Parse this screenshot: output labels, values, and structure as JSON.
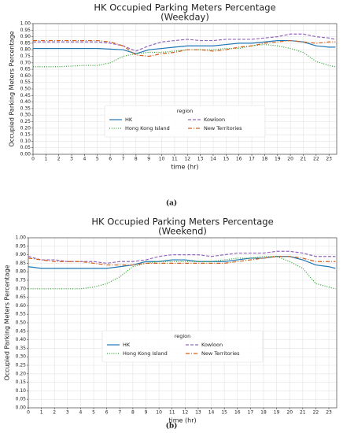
{
  "chart_data": [
    {
      "type": "line",
      "title": "HK Occupied Parking Meters Percentage",
      "subtitle": "(Weekday)",
      "caption": "(a)",
      "xlabel": "time (hr)",
      "ylabel": "Occupied Parking Meters Percentage",
      "legend_title": "region",
      "legend": "center",
      "grid": true,
      "x": [
        0,
        1,
        2,
        3,
        4,
        5,
        6,
        7,
        8,
        9,
        10,
        11,
        12,
        13,
        14,
        15,
        16,
        17,
        18,
        19,
        20,
        21,
        22,
        23,
        23.5
      ],
      "xlim": [
        0,
        23.6
      ],
      "xticks": [
        0,
        1,
        2,
        3,
        4,
        5,
        6,
        7,
        8,
        9,
        10,
        11,
        12,
        13,
        14,
        15,
        16,
        17,
        18,
        19,
        20,
        21,
        22,
        23
      ],
      "ylim": [
        0,
        1
      ],
      "yticks": [
        {
          "value": 0,
          "label": "0.00"
        },
        {
          "value": 0.05,
          "label": "0.05"
        },
        {
          "value": 0.1,
          "label": "0.10"
        },
        {
          "value": 0.15,
          "label": "0.15"
        },
        {
          "value": 0.2,
          "label": "0.20"
        },
        {
          "value": 0.25,
          "label": "0.25"
        },
        {
          "value": 0.3,
          "label": "0.30"
        },
        {
          "value": 0.35,
          "label": "0.35"
        },
        {
          "value": 0.4,
          "label": "0.40"
        },
        {
          "value": 0.45,
          "label": "0.45"
        },
        {
          "value": 0.5,
          "label": "0.50"
        },
        {
          "value": 0.55,
          "label": "0.55"
        },
        {
          "value": 0.6,
          "label": "0.60"
        },
        {
          "value": 0.65,
          "label": "0.65"
        },
        {
          "value": 0.7,
          "label": "0.70"
        },
        {
          "value": 0.75,
          "label": "0.75"
        },
        {
          "value": 0.8,
          "label": "0.80"
        },
        {
          "value": 0.85,
          "label": "0.85"
        },
        {
          "value": 0.9,
          "label": "0.90"
        },
        {
          "value": 0.95,
          "label": "0.95"
        },
        {
          "value": 1,
          "label": "1.00"
        }
      ],
      "series": [
        {
          "name": "HK",
          "color": "#1f77b4",
          "dash": "solid",
          "values": [
            0.81,
            0.81,
            0.81,
            0.81,
            0.81,
            0.81,
            0.805,
            0.8,
            0.77,
            0.8,
            0.81,
            0.82,
            0.83,
            0.83,
            0.83,
            0.84,
            0.85,
            0.85,
            0.86,
            0.87,
            0.87,
            0.86,
            0.83,
            0.82,
            0.82
          ]
        },
        {
          "name": "Hong Kong Island",
          "color": "#2ca02c",
          "dash": "dotted",
          "values": [
            0.67,
            0.67,
            0.67,
            0.675,
            0.68,
            0.68,
            0.7,
            0.75,
            0.77,
            0.78,
            0.78,
            0.79,
            0.8,
            0.8,
            0.8,
            0.81,
            0.81,
            0.83,
            0.84,
            0.83,
            0.81,
            0.78,
            0.71,
            0.68,
            0.67
          ]
        },
        {
          "name": "Kowloon",
          "color": "#9467bd",
          "dash": "dashed",
          "values": [
            0.86,
            0.86,
            0.86,
            0.86,
            0.86,
            0.86,
            0.85,
            0.83,
            0.79,
            0.83,
            0.86,
            0.87,
            0.88,
            0.87,
            0.87,
            0.88,
            0.88,
            0.88,
            0.89,
            0.9,
            0.92,
            0.92,
            0.9,
            0.89,
            0.88
          ]
        },
        {
          "name": "New Territories",
          "color": "#d2601a",
          "dash": "dashdot",
          "values": [
            0.87,
            0.87,
            0.87,
            0.87,
            0.87,
            0.87,
            0.86,
            0.83,
            0.76,
            0.75,
            0.77,
            0.78,
            0.8,
            0.8,
            0.79,
            0.8,
            0.82,
            0.83,
            0.85,
            0.86,
            0.87,
            0.86,
            0.85,
            0.86,
            0.86
          ]
        }
      ]
    },
    {
      "type": "line",
      "title": "HK Occupied Parking Meters Percentage",
      "subtitle": "(Weekend)",
      "caption": "(b)",
      "xlabel": "time (hr)",
      "ylabel": "Occupied Parking Meters Percentage",
      "legend_title": "region",
      "legend": "center",
      "grid": true,
      "x": [
        0,
        1,
        2,
        3,
        4,
        5,
        6,
        7,
        8,
        9,
        10,
        11,
        12,
        13,
        14,
        15,
        16,
        17,
        18,
        19,
        20,
        21,
        22,
        23,
        23.5
      ],
      "xlim": [
        0,
        23.6
      ],
      "xticks": [
        0,
        1,
        2,
        3,
        4,
        5,
        6,
        7,
        8,
        9,
        10,
        11,
        12,
        13,
        14,
        15,
        16,
        17,
        18,
        19,
        20,
        21,
        22,
        23
      ],
      "ylim": [
        0,
        1
      ],
      "yticks": [
        {
          "value": 0,
          "label": "0.00"
        },
        {
          "value": 0.05,
          "label": "0.05"
        },
        {
          "value": 0.1,
          "label": "0.10"
        },
        {
          "value": 0.15,
          "label": "0.15"
        },
        {
          "value": 0.2,
          "label": "0.20"
        },
        {
          "value": 0.25,
          "label": "0.25"
        },
        {
          "value": 0.3,
          "label": "0.30"
        },
        {
          "value": 0.35,
          "label": "0.35"
        },
        {
          "value": 0.4,
          "label": "0.40"
        },
        {
          "value": 0.45,
          "label": "0.45"
        },
        {
          "value": 0.5,
          "label": "0.50"
        },
        {
          "value": 0.55,
          "label": "0.55"
        },
        {
          "value": 0.6,
          "label": "0.60"
        },
        {
          "value": 0.65,
          "label": "0.65"
        },
        {
          "value": 0.7,
          "label": "0.70"
        },
        {
          "value": 0.75,
          "label": "0.75"
        },
        {
          "value": 0.8,
          "label": "0.80"
        },
        {
          "value": 0.85,
          "label": "0.85"
        },
        {
          "value": 0.9,
          "label": "0.90"
        },
        {
          "value": 0.95,
          "label": "0.95"
        },
        {
          "value": 1,
          "label": "1.00"
        }
      ],
      "series": [
        {
          "name": "HK",
          "color": "#1f77b4",
          "dash": "solid",
          "values": [
            0.83,
            0.82,
            0.82,
            0.82,
            0.82,
            0.82,
            0.82,
            0.83,
            0.84,
            0.86,
            0.86,
            0.87,
            0.87,
            0.86,
            0.86,
            0.86,
            0.87,
            0.88,
            0.88,
            0.89,
            0.89,
            0.87,
            0.84,
            0.83,
            0.82
          ]
        },
        {
          "name": "Hong Kong Island",
          "color": "#2ca02c",
          "dash": "dotted",
          "values": [
            0.7,
            0.7,
            0.7,
            0.7,
            0.7,
            0.71,
            0.73,
            0.77,
            0.83,
            0.85,
            0.86,
            0.86,
            0.86,
            0.86,
            0.86,
            0.87,
            0.88,
            0.88,
            0.89,
            0.89,
            0.86,
            0.82,
            0.73,
            0.71,
            0.7
          ]
        },
        {
          "name": "Kowloon",
          "color": "#9467bd",
          "dash": "dashed",
          "values": [
            0.89,
            0.87,
            0.87,
            0.86,
            0.86,
            0.86,
            0.85,
            0.86,
            0.86,
            0.87,
            0.89,
            0.9,
            0.9,
            0.9,
            0.89,
            0.9,
            0.91,
            0.91,
            0.91,
            0.92,
            0.92,
            0.91,
            0.89,
            0.89,
            0.89
          ]
        },
        {
          "name": "New Territories",
          "color": "#d2601a",
          "dash": "dashdot",
          "values": [
            0.88,
            0.87,
            0.86,
            0.86,
            0.86,
            0.85,
            0.84,
            0.84,
            0.84,
            0.85,
            0.85,
            0.85,
            0.85,
            0.85,
            0.85,
            0.85,
            0.86,
            0.87,
            0.88,
            0.89,
            0.89,
            0.88,
            0.86,
            0.86,
            0.86
          ]
        }
      ]
    }
  ]
}
